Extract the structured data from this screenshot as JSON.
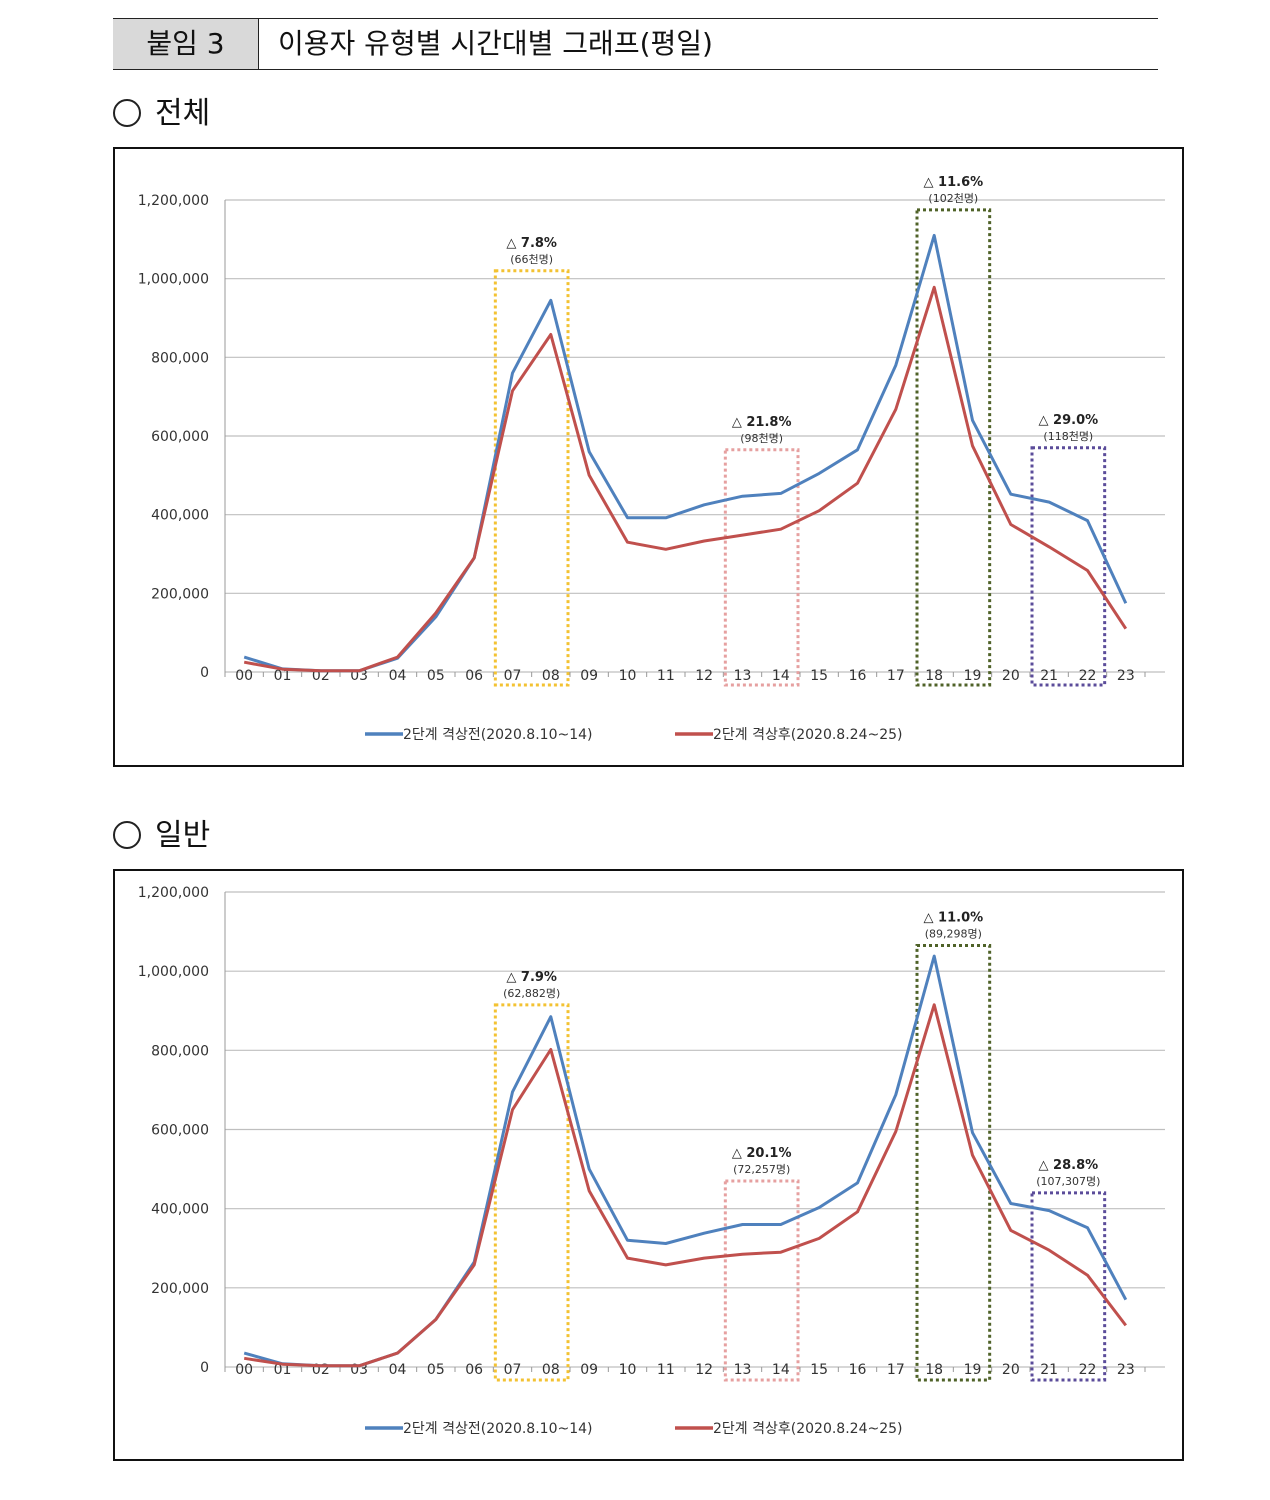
{
  "header": {
    "tag": "붙임 3",
    "title": "이용자 유형별 시간대별 그래프(평일)"
  },
  "sections": [
    {
      "title": "전체"
    },
    {
      "title": "일반"
    }
  ],
  "colors": {
    "before": "#4f81bd",
    "after": "#c0504d",
    "grid": "#bfbfbf"
  },
  "chart_data": [
    {
      "type": "line",
      "categories": [
        "00",
        "01",
        "02",
        "03",
        "04",
        "05",
        "06",
        "07",
        "08",
        "09",
        "10",
        "11",
        "12",
        "13",
        "14",
        "15",
        "16",
        "17",
        "18",
        "19",
        "20",
        "21",
        "22",
        "23"
      ],
      "ylim": [
        0,
        1200000
      ],
      "yticks": [
        "0",
        "200,000",
        "400,000",
        "600,000",
        "800,000",
        "1,000,000",
        "1,200,000"
      ],
      "grid": true,
      "legend_position": "bottom",
      "series": [
        {
          "name": "2단계 격상전(2020.8.10~14)",
          "color": "#4f81bd",
          "values": [
            38000,
            8000,
            3000,
            3000,
            35000,
            140000,
            290000,
            760000,
            945000,
            560000,
            392000,
            392000,
            425000,
            447000,
            454000,
            505000,
            565000,
            780000,
            1110000,
            640000,
            452000,
            432000,
            385000,
            175000
          ]
        },
        {
          "name": "2단계 격상후(2020.8.24~25)",
          "color": "#c0504d",
          "values": [
            25000,
            7000,
            3000,
            3000,
            38000,
            150000,
            290000,
            715000,
            858000,
            500000,
            330000,
            312000,
            333000,
            348000,
            363000,
            410000,
            480000,
            668000,
            978000,
            575000,
            375000,
            318000,
            258000,
            110000
          ]
        }
      ],
      "annotations": [
        {
          "label": "△ 7.8%",
          "sub": "(66천명)",
          "range": [
            "07",
            "08"
          ],
          "color": "#f3c232",
          "ytop": 1020000
        },
        {
          "label": "△ 21.8%",
          "sub": "(98천명)",
          "range": [
            "13",
            "14"
          ],
          "color": "#e6a0a0",
          "ytop": 565000
        },
        {
          "label": "△ 11.6%",
          "sub": "(102천명)",
          "range": [
            "18",
            "19"
          ],
          "color": "#4f6228",
          "ytop": 1175000
        },
        {
          "label": "△ 29.0%",
          "sub": "(118천명)",
          "range": [
            "21",
            "22"
          ],
          "color": "#5b4c9a",
          "ytop": 570000
        }
      ]
    },
    {
      "type": "line",
      "categories": [
        "00",
        "01",
        "02",
        "03",
        "04",
        "05",
        "06",
        "07",
        "08",
        "09",
        "10",
        "11",
        "12",
        "13",
        "14",
        "15",
        "16",
        "17",
        "18",
        "19",
        "20",
        "21",
        "22",
        "23"
      ],
      "ylim": [
        0,
        1200000
      ],
      "yticks": [
        "0",
        "200,000",
        "400,000",
        "600,000",
        "800,000",
        "1,000,000",
        "1,200,000"
      ],
      "grid": true,
      "legend_position": "bottom",
      "series": [
        {
          "name": "2단계 격상전(2020.8.10~14)",
          "color": "#4f81bd",
          "values": [
            35000,
            8000,
            3000,
            3000,
            35000,
            120000,
            265000,
            695000,
            885000,
            500000,
            320000,
            312000,
            338000,
            360000,
            360000,
            403000,
            465000,
            688000,
            1038000,
            592000,
            413000,
            395000,
            352000,
            170000
          ]
        },
        {
          "name": "2단계 격상후(2020.8.24~25)",
          "color": "#c0504d",
          "values": [
            22000,
            7000,
            3000,
            3000,
            35000,
            120000,
            258000,
            650000,
            802000,
            445000,
            275000,
            258000,
            275000,
            285000,
            290000,
            325000,
            392000,
            595000,
            915000,
            535000,
            345000,
            295000,
            232000,
            105000
          ]
        }
      ],
      "annotations": [
        {
          "label": "△ 7.9%",
          "sub": "(62,882명)",
          "range": [
            "07",
            "08"
          ],
          "color": "#f3c232",
          "ytop": 915000
        },
        {
          "label": "△ 20.1%",
          "sub": "(72,257명)",
          "range": [
            "13",
            "14"
          ],
          "color": "#e6a0a0",
          "ytop": 470000
        },
        {
          "label": "△ 11.0%",
          "sub": "(89,298명)",
          "range": [
            "18",
            "19"
          ],
          "color": "#4f6228",
          "ytop": 1065000
        },
        {
          "label": "△ 28.8%",
          "sub": "(107,307명)",
          "range": [
            "21",
            "22"
          ],
          "color": "#5b4c9a",
          "ytop": 440000
        }
      ]
    }
  ]
}
